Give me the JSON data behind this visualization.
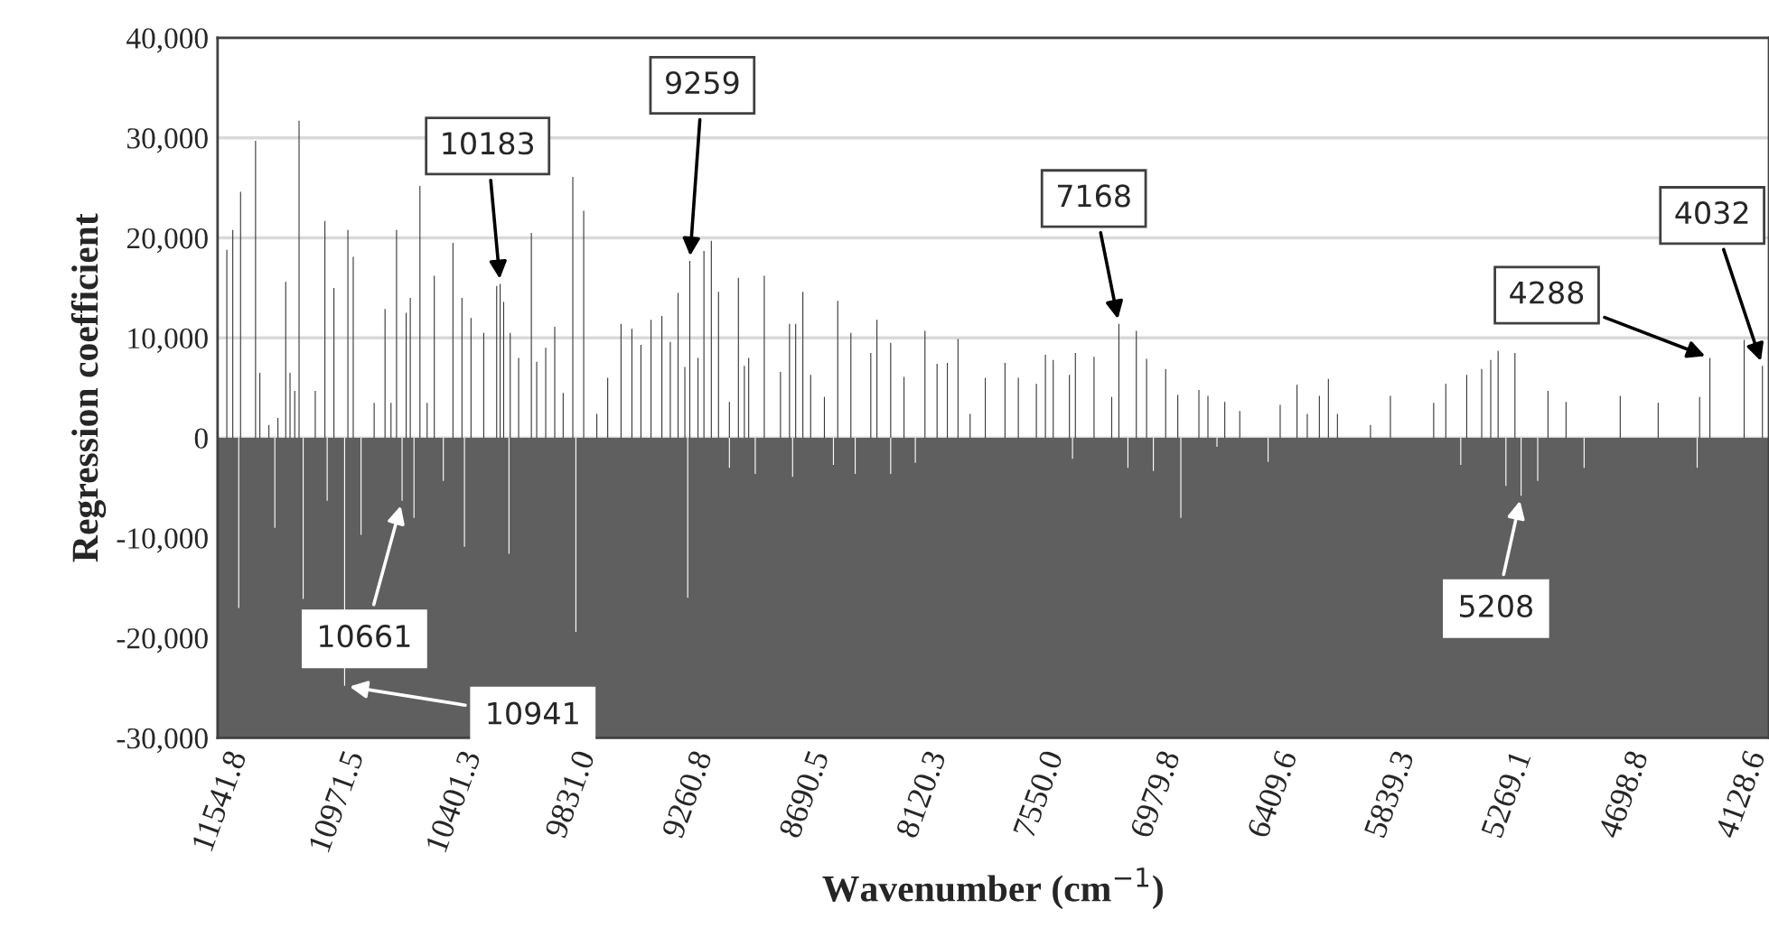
{
  "chart_data": {
    "type": "bar",
    "xlabel": "Wavenumber (cm$^{−1}$)",
    "ylabel": "Regression coefficient",
    "xlim": [
      11560,
      4000
    ],
    "xticks": [
      {
        "value": 11541.8,
        "label": "11541.8"
      },
      {
        "value": 10971.5,
        "label": "10971.5"
      },
      {
        "value": 10401.3,
        "label": "10401.3"
      },
      {
        "value": 9831.0,
        "label": "9831.0"
      },
      {
        "value": 9260.8,
        "label": "9260.8"
      },
      {
        "value": 8690.5,
        "label": "8690.5"
      },
      {
        "value": 8120.3,
        "label": "8120.3"
      },
      {
        "value": 7550.0,
        "label": "7550.0"
      },
      {
        "value": 6979.8,
        "label": "6979.8"
      },
      {
        "value": 6409.6,
        "label": "6409.6"
      },
      {
        "value": 5839.3,
        "label": "5839.3"
      },
      {
        "value": 5269.1,
        "label": "5269.1"
      },
      {
        "value": 4698.8,
        "label": "4698.8"
      },
      {
        "value": 4128.6,
        "label": "4128.6"
      }
    ],
    "ylim": [
      -30000,
      40000
    ],
    "yticks": [
      {
        "value": -30000,
        "label": "-30,000"
      },
      {
        "value": -20000,
        "label": "-20,000"
      },
      {
        "value": -10000,
        "label": "-10,000"
      },
      0,
      {
        "value": 10000,
        "label": "10,000"
      },
      {
        "value": 20000,
        "label": "20,000"
      },
      {
        "value": 30000,
        "label": "30,000"
      },
      {
        "value": 40000,
        "label": "40,000"
      }
    ],
    "grid": "y",
    "bands": [
      {
        "axis": "y",
        "from": -30000,
        "to": 0,
        "color": "#5f5f5f"
      }
    ],
    "series": [
      {
        "color": "#3a3a3a",
        "x": [
          11515,
          11486,
          11448,
          11375,
          11354,
          11310,
          11266,
          11228,
          11207,
          11184,
          11163,
          11084,
          11037,
          10993,
          10925,
          10899,
          10797,
          10744,
          10715,
          10688,
          10641,
          10621,
          10574,
          10539,
          10504,
          10413,
          10369,
          10325,
          10263,
          10200,
          10183,
          10166,
          10134,
          10093,
          10031,
          10005,
          9961,
          9917,
          9876,
          9829,
          9776,
          9712,
          9659,
          9594,
          9541,
          9497,
          9448,
          9395,
          9354,
          9316,
          9283,
          9259,
          9219,
          9190,
          9154,
          9119,
          9066,
          9022,
          8993,
          8972,
          8896,
          8817,
          8773,
          8743,
          8708,
          8670,
          8603,
          8538,
          8474,
          8377,
          8347,
          8280,
          8215,
          8113,
          8054,
          8004,
          7952,
          7893,
          7819,
          7723,
          7658,
          7570,
          7526,
          7488,
          7409,
          7380,
          7289,
          7203,
          7168,
          7083,
          7033,
          6940,
          6881,
          6778,
          6734,
          6652,
          6579,
          6382,
          6300,
          6250,
          6191,
          6147,
          6103,
          5942,
          5845,
          5634,
          5575,
          5473,
          5400,
          5356,
          5320,
          5238,
          5077,
          4989,
          4725,
          4540,
          4338,
          4288,
          4121,
          4032
        ],
        "values": [
          18800,
          20800,
          24600,
          29700,
          6500,
          1300,
          2000,
          15600,
          6500,
          4700,
          31700,
          4700,
          21700,
          15000,
          20800,
          18100,
          3500,
          12900,
          3500,
          20800,
          12500,
          14000,
          25200,
          3500,
          16200,
          19500,
          14000,
          12000,
          10500,
          15200,
          15400,
          13600,
          10500,
          8000,
          20500,
          7600,
          9000,
          11100,
          4500,
          26100,
          22700,
          2400,
          6000,
          11400,
          10900,
          9300,
          11800,
          12200,
          9600,
          14500,
          7100,
          17700,
          8000,
          18700,
          19700,
          14600,
          3600,
          16000,
          7200,
          8000,
          16200,
          6600,
          11400,
          11400,
          14600,
          6300,
          4100,
          13700,
          10500,
          8500,
          11800,
          9500,
          6100,
          10700,
          7400,
          7500,
          9900,
          2400,
          6000,
          7500,
          6000,
          5400,
          8300,
          7800,
          6300,
          8500,
          8100,
          4100,
          11400,
          10700,
          7900,
          6900,
          4300,
          4800,
          4200,
          3600,
          2700,
          3300,
          5300,
          2400,
          4200,
          5900,
          2400,
          1300,
          4200,
          3500,
          5400,
          6300,
          6900,
          7800,
          8700,
          8500,
          4700,
          3600,
          4200,
          3500,
          4100,
          8000,
          9800,
          7200
        ]
      },
      {
        "color": "#ffffff",
        "x": [
          11457,
          11281,
          11143,
          11026,
          10941,
          10861,
          10661,
          10603,
          10460,
          10357,
          10140,
          9814,
          9269,
          9066,
          8940,
          8758,
          8559,
          8453,
          8280,
          8160,
          7394,
          7124,
          7000,
          6866,
          6690,
          6441,
          5502,
          5282,
          5208,
          5127,
          4901,
          4350
        ],
        "values": [
          -17000,
          -9000,
          -16100,
          -6300,
          -24800,
          -9700,
          -6300,
          -8000,
          -4300,
          -10900,
          -11600,
          -19400,
          -16000,
          -3000,
          -3600,
          -3900,
          -2700,
          -3600,
          -3600,
          -2500,
          -2100,
          -3000,
          -3300,
          -8000,
          -900,
          -2400,
          -2700,
          -4800,
          -5800,
          -4300,
          -3000,
          -3000
        ]
      }
    ],
    "annotations": [
      {
        "text": "10183",
        "x": 10183,
        "y": 15400
      },
      {
        "text": "9259",
        "x": 9259,
        "y": 17700
      },
      {
        "text": "7168",
        "x": 7168,
        "y": 11400
      },
      {
        "text": "4288",
        "x": 4288,
        "y": 8000
      },
      {
        "text": "4032",
        "x": 4032,
        "y": 7200
      },
      {
        "text": "10661",
        "x": 10661,
        "y": -6300
      },
      {
        "text": "5208",
        "x": 5208,
        "y": -5800
      },
      {
        "text": "10941",
        "x": 10941,
        "y": -24800
      }
    ]
  }
}
